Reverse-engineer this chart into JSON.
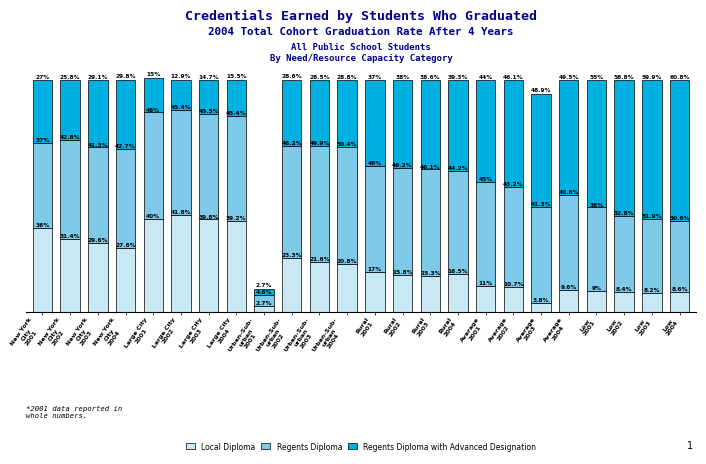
{
  "title1": "Credentials Earned by Students Who Graduated",
  "title2": "2004 Total Cohort Graduation Rate After 4 Years",
  "title3": "All Public School Students",
  "title4": "By Need/Resource Capacity Category",
  "footnote": "*2001 data reported in\nwhole numbers.",
  "page_number": "1",
  "legend_labels": [
    "Local Diploma",
    "Regents Diploma",
    "Regents Diploma with Advanced Designation"
  ],
  "legend_colors": [
    "#c8e8f4",
    "#7ec8e8",
    "#00b0e0"
  ],
  "bar_colors": [
    "#c8e8f4",
    "#7ec8e8",
    "#00b0e0"
  ],
  "categories": [
    "New York\nCity\n2001",
    "New York\nCity\n2002",
    "New York\nCity\n2003",
    "New York\nCity\n2004",
    "Large City\n2001",
    "Large City\n2002",
    "Large City\n2003",
    "Large City\n2004",
    "Urban-Sub-\nurban\n2001",
    "Urban-Sub-\nurban\n2002",
    "Urban-Sub-\nurban\n2003",
    "Urban-Sub-\nurban\n2004",
    "Rural\n2001",
    "Rural\n2002",
    "Rural\n2003",
    "Rural\n2004",
    "Average\n2001",
    "Average\n2002",
    "Average\n2003",
    "Average\n2004",
    "Low\n2001",
    "Low\n2002",
    "Low\n2003",
    "Low\n2004"
  ],
  "local": [
    36,
    31.4,
    29.6,
    27.6,
    40,
    41.8,
    39.8,
    39.2,
    2.7,
    23.3,
    21.6,
    20.8,
    17,
    15.8,
    15.3,
    16.5,
    11,
    10.7,
    3.8,
    9.6,
    9,
    8.4,
    8.2,
    8.6
  ],
  "regents": [
    37,
    42.8,
    41.3,
    42.7,
    46,
    45.4,
    45.5,
    45.4,
    4.6,
    48.2,
    49.9,
    50.4,
    46,
    46.2,
    46.1,
    44.2,
    45,
    43.2,
    41.3,
    40.8,
    36,
    32.8,
    31.9,
    30.6
  ],
  "advanced": [
    27,
    25.8,
    29.1,
    29.8,
    15,
    12.9,
    14.7,
    15.5,
    2.7,
    28.6,
    28.5,
    28.8,
    37,
    38.0,
    38.6,
    39.3,
    44,
    46.1,
    48.9,
    49.5,
    55,
    58.8,
    59.9,
    60.8
  ],
  "background_color": "#ffffff",
  "title_color": "#00008b",
  "bar_outline": "#000000",
  "ylim": [
    0,
    105
  ],
  "bar_width": 0.7,
  "label_fontsize": 4.2,
  "xlabel_fontsize": 4.5,
  "title1_fontsize": 9.5,
  "title2_fontsize": 7.8,
  "title34_fontsize": 6.5
}
